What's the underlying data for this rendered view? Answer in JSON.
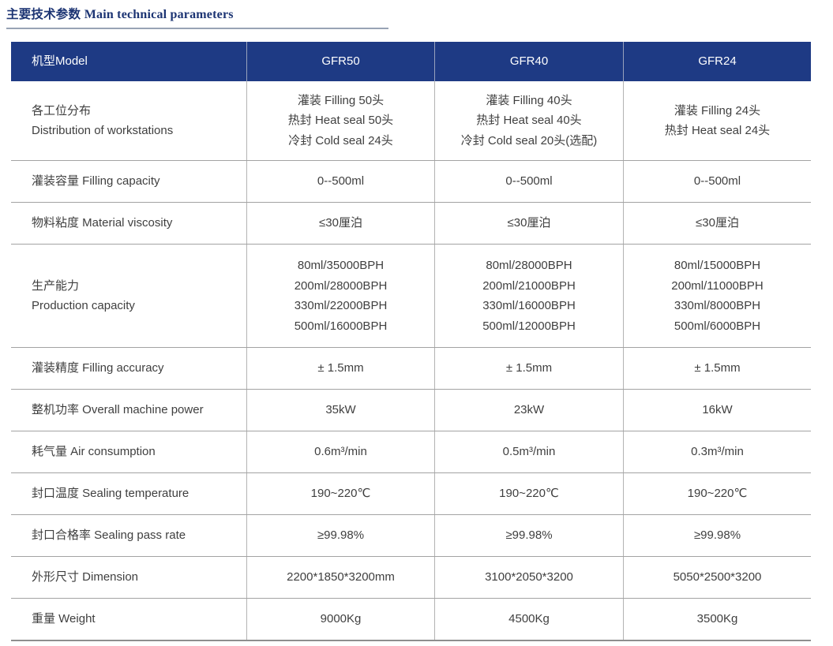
{
  "title": {
    "zh": "主要技术参数",
    "en": "Main technical parameters"
  },
  "colors": {
    "header_bg": "#1e3a84",
    "header_text": "#ffffff",
    "title_text": "#1c3473",
    "body_text": "#3f3f3f",
    "grid_line": "#a3a3a3",
    "title_underline": "#98a3b5"
  },
  "table": {
    "header": {
      "model_label": "机型Model",
      "columns": [
        "GFR50",
        "GFR40",
        "GFR24"
      ]
    },
    "rows": [
      {
        "label": "各工位分布\nDistribution of workstations",
        "cells": [
          "灌装 Filling 50头\n热封 Heat seal 50头\n冷封 Cold seal 24头",
          "灌装 Filling 40头\n热封 Heat seal 40头\n冷封 Cold seal 20头(选配)",
          "灌装 Filling 24头\n热封 Heat seal 24头"
        ]
      },
      {
        "label": "灌装容量 Filling capacity",
        "cells": [
          "0--500ml",
          "0--500ml",
          "0--500ml"
        ]
      },
      {
        "label": "物料粘度 Material viscosity",
        "cells": [
          "≤30厘泊",
          "≤30厘泊",
          "≤30厘泊"
        ]
      },
      {
        "label": "生产能力\nProduction capacity",
        "cells": [
          "80ml/35000BPH\n200ml/28000BPH\n330ml/22000BPH\n500ml/16000BPH",
          "80ml/28000BPH\n200ml/21000BPH\n330ml/16000BPH\n500ml/12000BPH",
          "80ml/15000BPH\n200ml/11000BPH\n330ml/8000BPH\n500ml/6000BPH"
        ]
      },
      {
        "label": "灌装精度 Filling accuracy",
        "cells": [
          "± 1.5mm",
          "± 1.5mm",
          "± 1.5mm"
        ]
      },
      {
        "label": "整机功率 Overall machine power",
        "cells": [
          "35kW",
          "23kW",
          "16kW"
        ]
      },
      {
        "label": "耗气量 Air consumption",
        "cells": [
          "0.6m³/min",
          "0.5m³/min",
          "0.3m³/min"
        ]
      },
      {
        "label": "封口温度 Sealing temperature",
        "cells": [
          "190~220℃",
          "190~220℃",
          "190~220℃"
        ]
      },
      {
        "label": "封口合格率 Sealing pass rate",
        "cells": [
          "≥99.98%",
          "≥99.98%",
          "≥99.98%"
        ]
      },
      {
        "label": "外形尺寸 Dimension",
        "cells": [
          "2200*1850*3200mm",
          "3100*2050*3200",
          "5050*2500*3200"
        ]
      },
      {
        "label": "重量 Weight",
        "cells": [
          "9000Kg",
          "4500Kg",
          "3500Kg"
        ]
      }
    ]
  }
}
